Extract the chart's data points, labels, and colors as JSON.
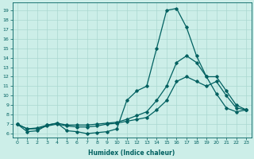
{
  "xlabel": "Humidex (Indice chaleur)",
  "ylabel": "",
  "background_color": "#cceee8",
  "line_color": "#006060",
  "xlim": [
    -0.5,
    23.5
  ],
  "ylim": [
    5.6,
    19.8
  ],
  "yticks": [
    6,
    7,
    8,
    9,
    10,
    11,
    12,
    13,
    14,
    15,
    16,
    17,
    18,
    19
  ],
  "xticks": [
    0,
    1,
    2,
    3,
    4,
    5,
    6,
    7,
    8,
    9,
    10,
    11,
    12,
    13,
    14,
    15,
    16,
    17,
    18,
    19,
    20,
    21,
    22,
    23
  ],
  "curve1_x": [
    0,
    1,
    2,
    3,
    4,
    5,
    6,
    7,
    8,
    9,
    10,
    11,
    12,
    13,
    14,
    15,
    16,
    17,
    18,
    19,
    20,
    21,
    22,
    23
  ],
  "curve1_y": [
    7.0,
    6.2,
    6.3,
    6.9,
    7.1,
    6.3,
    6.2,
    6.0,
    6.1,
    6.2,
    6.5,
    9.5,
    10.5,
    11.0,
    15.0,
    19.0,
    19.2,
    17.2,
    14.2,
    12.0,
    10.2,
    8.7,
    8.3,
    8.5
  ],
  "curve2_x": [
    0,
    1,
    2,
    3,
    4,
    5,
    6,
    7,
    8,
    9,
    10,
    11,
    12,
    13,
    14,
    15,
    16,
    17,
    18,
    19,
    20,
    21,
    22,
    23
  ],
  "curve2_y": [
    7.0,
    6.5,
    6.6,
    6.9,
    7.1,
    6.9,
    6.9,
    6.9,
    7.0,
    7.1,
    7.2,
    7.5,
    7.9,
    8.3,
    9.5,
    11.0,
    13.5,
    14.2,
    13.5,
    12.0,
    12.0,
    10.5,
    9.0,
    8.5
  ],
  "curve3_x": [
    0,
    1,
    2,
    3,
    4,
    5,
    6,
    7,
    8,
    9,
    10,
    11,
    12,
    13,
    14,
    15,
    16,
    17,
    18,
    19,
    20,
    21,
    22,
    23
  ],
  "curve3_y": [
    7.0,
    6.5,
    6.5,
    6.8,
    7.0,
    6.8,
    6.7,
    6.7,
    6.8,
    7.0,
    7.1,
    7.3,
    7.5,
    7.7,
    8.5,
    9.5,
    11.5,
    12.0,
    11.5,
    11.0,
    11.5,
    10.0,
    8.7,
    8.5
  ],
  "grid_color": "#aad8d0",
  "marker": "D",
  "markersize": 1.8,
  "linewidth": 0.9,
  "tick_fontsize": 4.5,
  "xlabel_fontsize": 5.5
}
